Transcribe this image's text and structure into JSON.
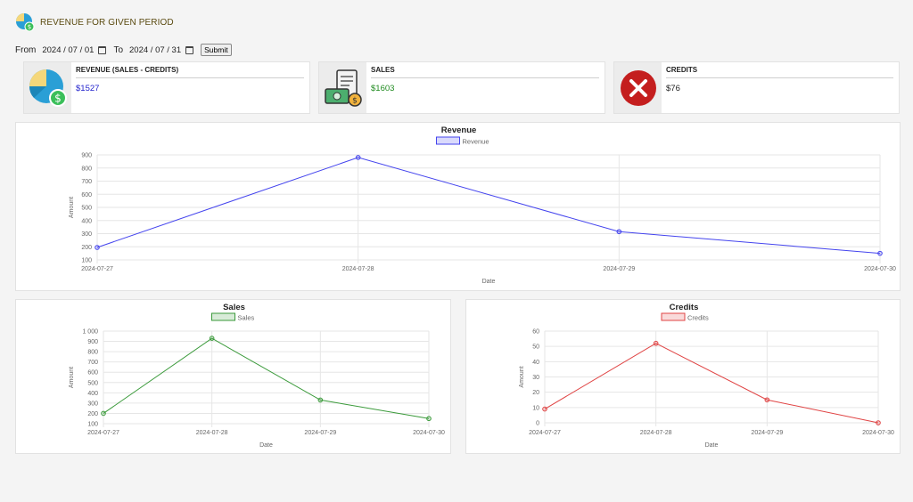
{
  "header": {
    "title": "REVENUE FOR GIVEN PERIOD"
  },
  "filters": {
    "from_label": "From",
    "from_value": "2024 / 07 / 01",
    "to_label": "To",
    "to_value": "2024 / 07 / 31",
    "submit_label": "Submit"
  },
  "cards": {
    "revenue": {
      "label": "REVENUE (SALES - CREDITS)",
      "value": "$1527",
      "color": "#2222cc"
    },
    "sales": {
      "label": "SALES",
      "value": "$1603",
      "color": "#1e8a1e"
    },
    "credits": {
      "label": "CREDITS",
      "value": "$76",
      "color": "#222222"
    }
  },
  "chart_data": [
    {
      "id": "revenue",
      "type": "line",
      "title": "Revenue",
      "xlabel": "Date",
      "ylabel": "Amount",
      "x": [
        "2024-07-27",
        "2024-07-28",
        "2024-07-29",
        "2024-07-30"
      ],
      "series": [
        {
          "name": "Revenue",
          "values": [
            195,
            880,
            315,
            150
          ],
          "color": "#4444ee"
        }
      ],
      "ylim": [
        100,
        900
      ],
      "yticks": [
        "900",
        "800",
        "700",
        "600",
        "500",
        "400",
        "300",
        "200",
        "100"
      ],
      "grid": true,
      "legend": "top-center"
    },
    {
      "id": "sales",
      "type": "line",
      "title": "Sales",
      "xlabel": "Date",
      "ylabel": "Amount",
      "x": [
        "2024-07-27",
        "2024-07-28",
        "2024-07-29",
        "2024-07-30"
      ],
      "series": [
        {
          "name": "Sales",
          "values": [
            200,
            930,
            330,
            150
          ],
          "color": "#3a9a3a"
        }
      ],
      "ylim": [
        100,
        1000
      ],
      "yticks": [
        "1 000",
        "900",
        "800",
        "700",
        "600",
        "500",
        "400",
        "300",
        "200",
        "100"
      ],
      "grid": true,
      "legend": "top-center"
    },
    {
      "id": "credits",
      "type": "line",
      "title": "Credits",
      "xlabel": "Date",
      "ylabel": "Amount",
      "x": [
        "2024-07-27",
        "2024-07-28",
        "2024-07-29",
        "2024-07-30"
      ],
      "series": [
        {
          "name": "Credits",
          "values": [
            9,
            52,
            15,
            0
          ],
          "color": "#e04444"
        }
      ],
      "ylim": [
        0,
        60
      ],
      "yticks": [
        "60",
        "50",
        "40",
        "30",
        "20",
        "10",
        "0"
      ],
      "grid": true,
      "legend": "top-center"
    }
  ]
}
